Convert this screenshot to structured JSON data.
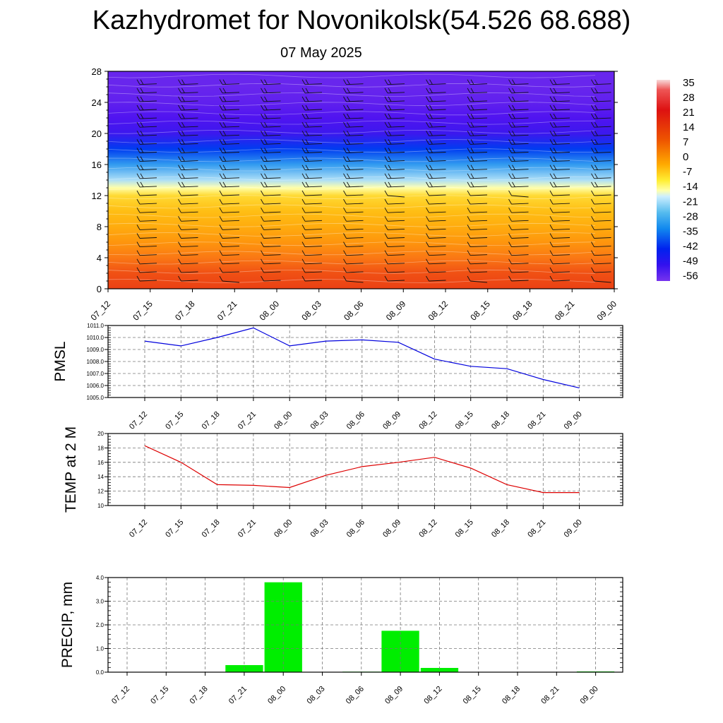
{
  "header": {
    "title": "Kazhydromet for Novonikolsk(54.526 68.688)",
    "date": "07 May 2025"
  },
  "chart_data": [
    {
      "type": "heatmap",
      "name": "temperature-cross-section",
      "x_categories": [
        "07_12",
        "07_15",
        "07_18",
        "07_21",
        "08_00",
        "08_03",
        "08_06",
        "08_09",
        "08_12",
        "08_15",
        "08_18",
        "08_21",
        "09_00"
      ],
      "y_ticks": [
        0,
        4,
        8,
        12,
        16,
        20,
        24,
        28
      ],
      "ylim": [
        0,
        28
      ],
      "colorbar_labels": [
        "35",
        "28",
        "21",
        "14",
        "7",
        "0",
        "-7",
        "-14",
        "-21",
        "-28",
        "-35",
        "-42",
        "-49",
        "-56"
      ],
      "colorbar_range": [
        -60,
        38
      ],
      "temperature_profile_by_level": [
        {
          "level": 0,
          "value": 12
        },
        {
          "level": 2,
          "value": 10
        },
        {
          "level": 4,
          "value": 6
        },
        {
          "level": 6,
          "value": 3
        },
        {
          "level": 8,
          "value": 0
        },
        {
          "level": 10,
          "value": -3
        },
        {
          "level": 12,
          "value": -7
        },
        {
          "level": 13,
          "value": -12
        },
        {
          "level": 14,
          "value": -20
        },
        {
          "level": 16,
          "value": -32
        },
        {
          "level": 18,
          "value": -45
        },
        {
          "level": 20,
          "value": -53
        },
        {
          "level": 22,
          "value": -55
        },
        {
          "level": 24,
          "value": -57
        },
        {
          "level": 26,
          "value": -58
        },
        {
          "level": 28,
          "value": -58
        }
      ]
    },
    {
      "type": "line",
      "name": "pmsl",
      "ylabel": "PMSL",
      "categories": [
        "07_12",
        "07_15",
        "07_18",
        "07_21",
        "08_00",
        "08_03",
        "08_06",
        "08_09",
        "08_12",
        "08_15",
        "08_18",
        "08_21",
        "09_00"
      ],
      "values": [
        1009.7,
        1009.3,
        1010.0,
        1010.8,
        1009.3,
        1009.7,
        1009.8,
        1009.6,
        1008.2,
        1007.6,
        1007.4,
        1006.5,
        1005.8
      ],
      "ylim": [
        1005.0,
        1011.0
      ],
      "yticks": [
        "1005.0",
        "1006.0",
        "1007.0",
        "1008.0",
        "1009.0",
        "1010.0",
        "1011.0"
      ],
      "color": "#0000dd"
    },
    {
      "type": "line",
      "name": "temp-2m",
      "ylabel": "TEMP at 2 M",
      "categories": [
        "07_12",
        "07_15",
        "07_18",
        "07_21",
        "08_00",
        "08_03",
        "08_06",
        "08_09",
        "08_12",
        "08_15",
        "08_18",
        "08_21",
        "09_00"
      ],
      "values": [
        18.3,
        16.0,
        12.9,
        12.8,
        12.5,
        14.2,
        15.4,
        16.0,
        16.7,
        15.2,
        12.9,
        11.8,
        11.8
      ],
      "ylim": [
        10,
        20
      ],
      "yticks": [
        "10",
        "12",
        "14",
        "16",
        "18",
        "20"
      ],
      "color": "#dd0000"
    },
    {
      "type": "bar",
      "name": "precip",
      "ylabel": "PRECIP, mm",
      "categories": [
        "07_12",
        "07_15",
        "07_18",
        "07_21",
        "08_00",
        "08_03",
        "08_06",
        "08_09",
        "08_12",
        "08_15",
        "08_18",
        "08_21",
        "09_00"
      ],
      "values": [
        0,
        0,
        0,
        0.3,
        3.8,
        0,
        0.02,
        1.75,
        0.18,
        0,
        0,
        0,
        0.03
      ],
      "ylim": [
        0,
        4.0
      ],
      "yticks": [
        "0.0",
        "1.0",
        "2.0",
        "3.0",
        "4.0"
      ],
      "color": "#00ee00"
    }
  ]
}
